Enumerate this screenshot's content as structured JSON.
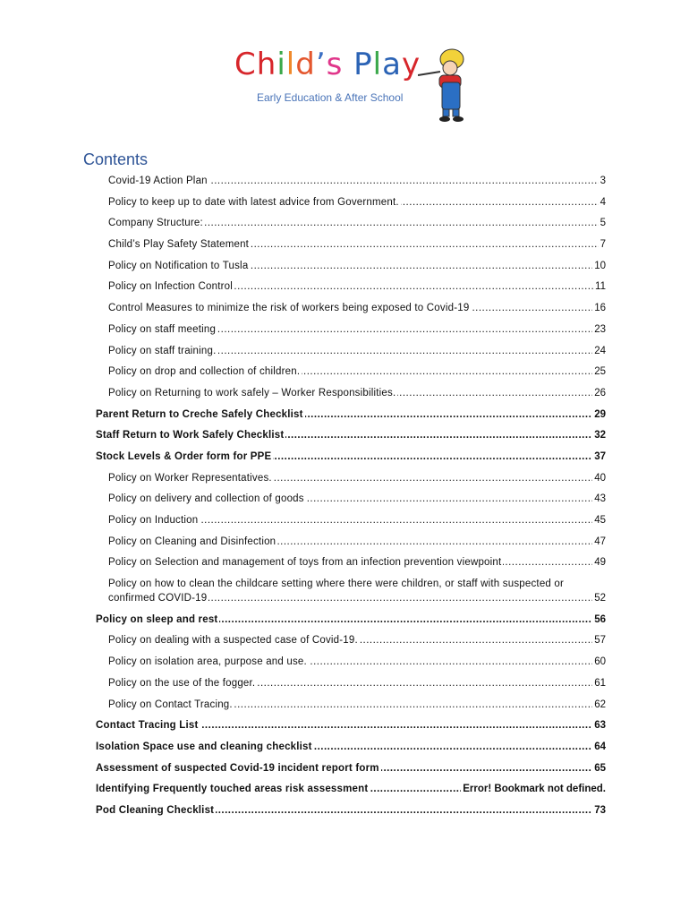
{
  "logo": {
    "name": "Child's Play",
    "letters": [
      [
        "C",
        "#d7262b"
      ],
      [
        "h",
        "#d7262b"
      ],
      [
        "i",
        "#3aa84a"
      ],
      [
        "l",
        "#f08a2c"
      ],
      [
        "d",
        "#e4572e"
      ],
      [
        "’",
        "#3a6fc4"
      ],
      [
        "s",
        "#e0368a"
      ],
      [
        " ",
        "#000"
      ],
      [
        "P",
        "#2b63b5"
      ],
      [
        "l",
        "#3aa84a"
      ],
      [
        "a",
        "#2b63b5"
      ],
      [
        "y",
        "#d7262b"
      ]
    ],
    "tagline": "Early Education & After School"
  },
  "heading": "Contents",
  "entries": [
    {
      "title": "Covid-19 Action Plan",
      "page": "3",
      "level": 2,
      "bold": false
    },
    {
      "title": "Policy to keep up to date with latest advice from Government.",
      "page": "4",
      "level": 2,
      "bold": false
    },
    {
      "title": "Company Structure:",
      "page": "5",
      "level": 2,
      "bold": false
    },
    {
      "title": "Child’s Play Safety Statement",
      "page": "7",
      "level": 2,
      "bold": false
    },
    {
      "title": "Policy on Notification to Tusla",
      "page": "10",
      "level": 2,
      "bold": false
    },
    {
      "title": "Policy on Infection Control",
      "page": "11",
      "level": 2,
      "bold": false
    },
    {
      "title": "Control Measures to minimize the risk of workers being exposed to Covid-19",
      "page": "16",
      "level": 2,
      "bold": false
    },
    {
      "title": "Policy on staff meeting",
      "page": "23",
      "level": 2,
      "bold": false
    },
    {
      "title": "Policy on staff training.",
      "page": "24",
      "level": 2,
      "bold": false
    },
    {
      "title": "Policy on drop and collection of children.",
      "page": "25",
      "level": 2,
      "bold": false
    },
    {
      "title": "Policy on Returning to work safely – Worker Responsibilities.",
      "page": "26",
      "level": 2,
      "bold": false
    },
    {
      "title": "Parent Return to Creche Safely Checklist",
      "page": "29",
      "level": 1,
      "bold": true
    },
    {
      "title": "Staff Return to Work Safely Checklist",
      "page": "32",
      "level": 1,
      "bold": true
    },
    {
      "title": "Stock Levels & Order form for PPE",
      "page": "37",
      "level": 1,
      "bold": true
    },
    {
      "title": "Policy on Worker Representatives.",
      "page": "40",
      "level": 2,
      "bold": false
    },
    {
      "title": "Policy on delivery and collection of goods",
      "page": "43",
      "level": 2,
      "bold": false
    },
    {
      "title": "Policy on Induction",
      "page": "45",
      "level": 2,
      "bold": false
    },
    {
      "title": "Policy on Cleaning and Disinfection",
      "page": "47",
      "level": 2,
      "bold": false
    },
    {
      "title": "Policy on Selection and management of toys from an infection prevention viewpoint",
      "page": "49",
      "level": 2,
      "bold": false
    },
    {
      "title": "Policy on how to clean the childcare setting where there were children, or staff with suspected or confirmed COVID-19",
      "page": "52",
      "level": 2,
      "bold": false
    },
    {
      "title": "Policy on sleep and rest",
      "page": "56",
      "level": 1,
      "bold": true
    },
    {
      "title": "Policy on dealing with a suspected case of Covid-19.",
      "page": "57",
      "level": 2,
      "bold": false
    },
    {
      "title": "Policy on isolation area, purpose and use.",
      "page": "60",
      "level": 2,
      "bold": false
    },
    {
      "title": "Policy on the use of the fogger.",
      "page": "61",
      "level": 2,
      "bold": false
    },
    {
      "title": "Policy on Contact Tracing.",
      "page": "62",
      "level": 2,
      "bold": false
    },
    {
      "title": "Contact Tracing List",
      "page": "63",
      "level": 1,
      "bold": true
    },
    {
      "title": "Isolation Space use and cleaning checklist",
      "page": "64",
      "level": 1,
      "bold": true
    },
    {
      "title": "Assessment of suspected Covid-19 incident report form",
      "page": "65",
      "level": 1,
      "bold": true
    },
    {
      "title": "Identifying Frequently touched areas risk assessment",
      "page": "Error! Bookmark not defined.",
      "level": 1,
      "bold": true
    },
    {
      "title": "Pod Cleaning Checklist",
      "page": "73",
      "level": 1,
      "bold": true
    }
  ]
}
